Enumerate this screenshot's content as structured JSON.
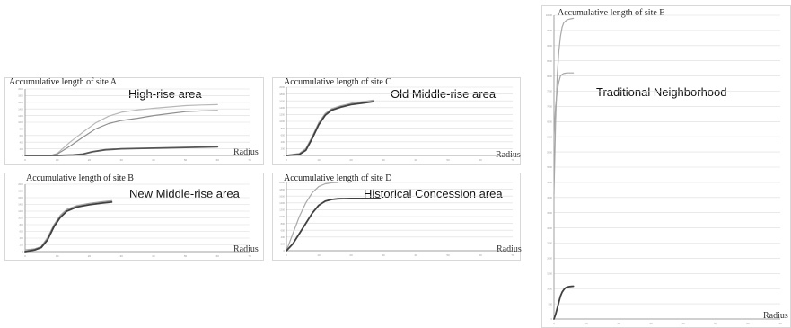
{
  "chart_data": [
    {
      "id": "A",
      "type": "line",
      "title": "Accumulative length of site A",
      "annotation": "High-rise area",
      "xlabel": "Radius",
      "xlim": [
        0,
        70
      ],
      "ylim": [
        0,
        2000
      ],
      "xticks": [
        0,
        10,
        20,
        30,
        40,
        50,
        60,
        70
      ],
      "yticks": [
        0,
        200,
        400,
        600,
        800,
        1000,
        1200,
        1400,
        1600,
        1800,
        2000
      ],
      "grid": true,
      "series": [
        {
          "color": "#b8b8b8",
          "width": 1.2,
          "x": [
            0,
            8,
            10,
            14,
            18,
            22,
            26,
            30,
            35,
            40,
            45,
            50,
            55,
            60
          ],
          "y": [
            0,
            0,
            60,
            400,
            700,
            980,
            1180,
            1300,
            1370,
            1420,
            1460,
            1500,
            1520,
            1530
          ]
        },
        {
          "color": "#909090",
          "width": 1.2,
          "x": [
            0,
            8,
            10,
            14,
            18,
            22,
            26,
            30,
            35,
            40,
            45,
            50,
            55,
            60
          ],
          "y": [
            0,
            0,
            40,
            280,
            550,
            800,
            960,
            1050,
            1120,
            1200,
            1260,
            1320,
            1340,
            1350
          ]
        },
        {
          "color": "#555555",
          "width": 1.8,
          "x": [
            0,
            10,
            15,
            18,
            21,
            25,
            30,
            40,
            50,
            60
          ],
          "y": [
            0,
            0,
            15,
            40,
            110,
            170,
            200,
            220,
            240,
            260
          ]
        }
      ]
    },
    {
      "id": "B",
      "type": "line",
      "title": "Accumulative length of site B",
      "annotation": "New Middle-rise area",
      "xlabel": "Radius",
      "xlim": [
        0,
        70
      ],
      "ylim": [
        0,
        2000
      ],
      "xticks": [
        0,
        10,
        20,
        30,
        40,
        50,
        60,
        70
      ],
      "yticks": [
        0,
        200,
        400,
        600,
        800,
        1000,
        1200,
        1400,
        1600,
        1800,
        2000
      ],
      "grid": true,
      "series": [
        {
          "color": "#a0a0a0",
          "width": 1.2,
          "x": [
            0,
            3,
            5,
            7,
            9,
            11,
            13,
            16,
            20,
            24,
            27
          ],
          "y": [
            50,
            80,
            150,
            420,
            800,
            1080,
            1250,
            1360,
            1430,
            1480,
            1510
          ]
        },
        {
          "color": "#404040",
          "width": 1.8,
          "x": [
            0,
            3,
            5,
            7,
            9,
            11,
            13,
            16,
            20,
            24,
            27
          ],
          "y": [
            0,
            50,
            120,
            350,
            740,
            1020,
            1200,
            1320,
            1390,
            1440,
            1470
          ]
        }
      ]
    },
    {
      "id": "C",
      "type": "line",
      "title": "Accumulative length of site C",
      "annotation": "Old Middle-rise area",
      "xlabel": "Radius",
      "xlim": [
        0,
        70
      ],
      "ylim": [
        0,
        2000
      ],
      "xticks": [
        0,
        10,
        20,
        30,
        40,
        50,
        60,
        70
      ],
      "yticks": [
        0,
        200,
        400,
        600,
        800,
        1000,
        1200,
        1400,
        1600,
        1800,
        2000
      ],
      "grid": true,
      "series": [
        {
          "color": "#a8a8a8",
          "width": 1.2,
          "x": [
            0,
            4,
            6,
            8,
            10,
            12,
            14,
            17,
            20,
            24,
            27
          ],
          "y": [
            0,
            60,
            200,
            560,
            960,
            1230,
            1370,
            1460,
            1530,
            1580,
            1620
          ]
        },
        {
          "color": "#404040",
          "width": 1.8,
          "x": [
            0,
            4,
            6,
            8,
            10,
            12,
            14,
            17,
            20,
            24,
            27
          ],
          "y": [
            0,
            30,
            150,
            500,
            900,
            1180,
            1330,
            1420,
            1490,
            1540,
            1580
          ]
        }
      ]
    },
    {
      "id": "D",
      "type": "line",
      "title": "Accumulative length of site D",
      "annotation": "Historical Concession area",
      "xlabel": "Radius",
      "xlim": [
        0,
        70
      ],
      "ylim": [
        0,
        2000
      ],
      "xticks": [
        0,
        10,
        20,
        30,
        40,
        50,
        60,
        70
      ],
      "yticks": [
        0,
        200,
        400,
        600,
        800,
        1000,
        1200,
        1400,
        1600,
        1800,
        2000
      ],
      "grid": true,
      "series": [
        {
          "color": "#a8a8a8",
          "width": 1.2,
          "x": [
            0,
            2,
            4,
            6,
            8,
            10,
            12,
            14,
            16
          ],
          "y": [
            0,
            500,
            1000,
            1400,
            1700,
            1880,
            1960,
            1990,
            2000
          ]
        },
        {
          "color": "#404040",
          "width": 1.8,
          "x": [
            0,
            2,
            4,
            6,
            8,
            10,
            12,
            14,
            16,
            20,
            24,
            29
          ],
          "y": [
            0,
            200,
            500,
            800,
            1100,
            1330,
            1450,
            1500,
            1520,
            1530,
            1530,
            1530
          ]
        }
      ]
    },
    {
      "id": "E",
      "type": "line",
      "title": "Accumulative length of site E",
      "annotation": "Traditional Neighborhood",
      "xlabel": "Radius",
      "xlim": [
        0,
        70
      ],
      "ylim": [
        0,
        10000
      ],
      "xticks": [
        0,
        10,
        20,
        30,
        40,
        50,
        60,
        70
      ],
      "yticks": [
        0,
        500,
        1000,
        1500,
        2000,
        2500,
        3000,
        3500,
        4000,
        4500,
        5000,
        5500,
        6000,
        6500,
        7000,
        7500,
        8000,
        8500,
        9000,
        9500,
        10000
      ],
      "grid": true,
      "series": [
        {
          "color": "#a8a8a8",
          "width": 1.2,
          "x": [
            0,
            0.5,
            1,
            1.5,
            2,
            2.5,
            3,
            4,
            5,
            6
          ],
          "y": [
            4100,
            6500,
            8000,
            8800,
            9300,
            9600,
            9750,
            9850,
            9880,
            9900
          ]
        },
        {
          "color": "#a8a8a8",
          "width": 1.2,
          "x": [
            0,
            0.5,
            1,
            1.5,
            2,
            2.5,
            3,
            4,
            5,
            6
          ],
          "y": [
            6000,
            7000,
            7500,
            7800,
            8000,
            8050,
            8080,
            8100,
            8100,
            8100
          ]
        },
        {
          "color": "#404040",
          "width": 1.8,
          "x": [
            0,
            0.5,
            1,
            1.5,
            2,
            2.5,
            3,
            3.5,
            4,
            5,
            6
          ],
          "y": [
            0,
            150,
            350,
            550,
            750,
            880,
            960,
            1020,
            1050,
            1070,
            1080
          ]
        }
      ]
    }
  ]
}
